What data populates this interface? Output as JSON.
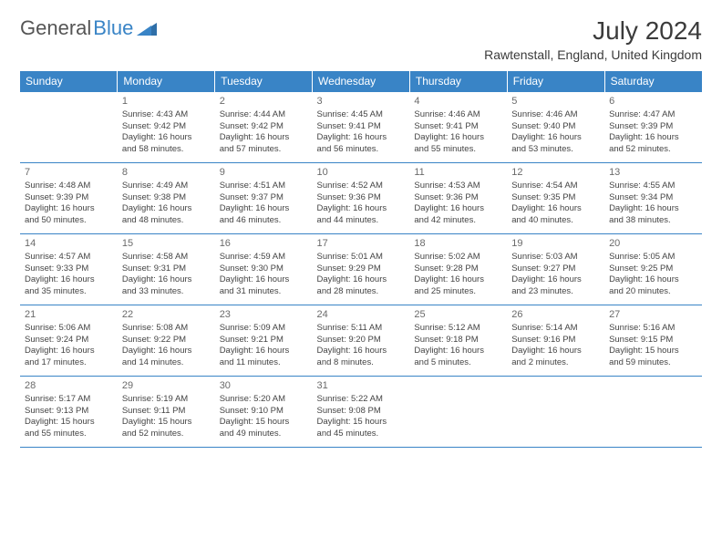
{
  "brand": {
    "part1": "General",
    "part2": "Blue"
  },
  "title": {
    "month": "July 2024",
    "location": "Rawtenstall, England, United Kingdom"
  },
  "colors": {
    "header_bg": "#3984c6",
    "header_fg": "#ffffff",
    "rule": "#3984c6"
  },
  "weekdays": [
    "Sunday",
    "Monday",
    "Tuesday",
    "Wednesday",
    "Thursday",
    "Friday",
    "Saturday"
  ],
  "weeks": [
    [
      null,
      {
        "d": "1",
        "sr": "4:43 AM",
        "ss": "9:42 PM",
        "dl1": "Daylight: 16 hours",
        "dl2": "and 58 minutes."
      },
      {
        "d": "2",
        "sr": "4:44 AM",
        "ss": "9:42 PM",
        "dl1": "Daylight: 16 hours",
        "dl2": "and 57 minutes."
      },
      {
        "d": "3",
        "sr": "4:45 AM",
        "ss": "9:41 PM",
        "dl1": "Daylight: 16 hours",
        "dl2": "and 56 minutes."
      },
      {
        "d": "4",
        "sr": "4:46 AM",
        "ss": "9:41 PM",
        "dl1": "Daylight: 16 hours",
        "dl2": "and 55 minutes."
      },
      {
        "d": "5",
        "sr": "4:46 AM",
        "ss": "9:40 PM",
        "dl1": "Daylight: 16 hours",
        "dl2": "and 53 minutes."
      },
      {
        "d": "6",
        "sr": "4:47 AM",
        "ss": "9:39 PM",
        "dl1": "Daylight: 16 hours",
        "dl2": "and 52 minutes."
      }
    ],
    [
      {
        "d": "7",
        "sr": "4:48 AM",
        "ss": "9:39 PM",
        "dl1": "Daylight: 16 hours",
        "dl2": "and 50 minutes."
      },
      {
        "d": "8",
        "sr": "4:49 AM",
        "ss": "9:38 PM",
        "dl1": "Daylight: 16 hours",
        "dl2": "and 48 minutes."
      },
      {
        "d": "9",
        "sr": "4:51 AM",
        "ss": "9:37 PM",
        "dl1": "Daylight: 16 hours",
        "dl2": "and 46 minutes."
      },
      {
        "d": "10",
        "sr": "4:52 AM",
        "ss": "9:36 PM",
        "dl1": "Daylight: 16 hours",
        "dl2": "and 44 minutes."
      },
      {
        "d": "11",
        "sr": "4:53 AM",
        "ss": "9:36 PM",
        "dl1": "Daylight: 16 hours",
        "dl2": "and 42 minutes."
      },
      {
        "d": "12",
        "sr": "4:54 AM",
        "ss": "9:35 PM",
        "dl1": "Daylight: 16 hours",
        "dl2": "and 40 minutes."
      },
      {
        "d": "13",
        "sr": "4:55 AM",
        "ss": "9:34 PM",
        "dl1": "Daylight: 16 hours",
        "dl2": "and 38 minutes."
      }
    ],
    [
      {
        "d": "14",
        "sr": "4:57 AM",
        "ss": "9:33 PM",
        "dl1": "Daylight: 16 hours",
        "dl2": "and 35 minutes."
      },
      {
        "d": "15",
        "sr": "4:58 AM",
        "ss": "9:31 PM",
        "dl1": "Daylight: 16 hours",
        "dl2": "and 33 minutes."
      },
      {
        "d": "16",
        "sr": "4:59 AM",
        "ss": "9:30 PM",
        "dl1": "Daylight: 16 hours",
        "dl2": "and 31 minutes."
      },
      {
        "d": "17",
        "sr": "5:01 AM",
        "ss": "9:29 PM",
        "dl1": "Daylight: 16 hours",
        "dl2": "and 28 minutes."
      },
      {
        "d": "18",
        "sr": "5:02 AM",
        "ss": "9:28 PM",
        "dl1": "Daylight: 16 hours",
        "dl2": "and 25 minutes."
      },
      {
        "d": "19",
        "sr": "5:03 AM",
        "ss": "9:27 PM",
        "dl1": "Daylight: 16 hours",
        "dl2": "and 23 minutes."
      },
      {
        "d": "20",
        "sr": "5:05 AM",
        "ss": "9:25 PM",
        "dl1": "Daylight: 16 hours",
        "dl2": "and 20 minutes."
      }
    ],
    [
      {
        "d": "21",
        "sr": "5:06 AM",
        "ss": "9:24 PM",
        "dl1": "Daylight: 16 hours",
        "dl2": "and 17 minutes."
      },
      {
        "d": "22",
        "sr": "5:08 AM",
        "ss": "9:22 PM",
        "dl1": "Daylight: 16 hours",
        "dl2": "and 14 minutes."
      },
      {
        "d": "23",
        "sr": "5:09 AM",
        "ss": "9:21 PM",
        "dl1": "Daylight: 16 hours",
        "dl2": "and 11 minutes."
      },
      {
        "d": "24",
        "sr": "5:11 AM",
        "ss": "9:20 PM",
        "dl1": "Daylight: 16 hours",
        "dl2": "and 8 minutes."
      },
      {
        "d": "25",
        "sr": "5:12 AM",
        "ss": "9:18 PM",
        "dl1": "Daylight: 16 hours",
        "dl2": "and 5 minutes."
      },
      {
        "d": "26",
        "sr": "5:14 AM",
        "ss": "9:16 PM",
        "dl1": "Daylight: 16 hours",
        "dl2": "and 2 minutes."
      },
      {
        "d": "27",
        "sr": "5:16 AM",
        "ss": "9:15 PM",
        "dl1": "Daylight: 15 hours",
        "dl2": "and 59 minutes."
      }
    ],
    [
      {
        "d": "28",
        "sr": "5:17 AM",
        "ss": "9:13 PM",
        "dl1": "Daylight: 15 hours",
        "dl2": "and 55 minutes."
      },
      {
        "d": "29",
        "sr": "5:19 AM",
        "ss": "9:11 PM",
        "dl1": "Daylight: 15 hours",
        "dl2": "and 52 minutes."
      },
      {
        "d": "30",
        "sr": "5:20 AM",
        "ss": "9:10 PM",
        "dl1": "Daylight: 15 hours",
        "dl2": "and 49 minutes."
      },
      {
        "d": "31",
        "sr": "5:22 AM",
        "ss": "9:08 PM",
        "dl1": "Daylight: 15 hours",
        "dl2": "and 45 minutes."
      },
      null,
      null,
      null
    ]
  ]
}
